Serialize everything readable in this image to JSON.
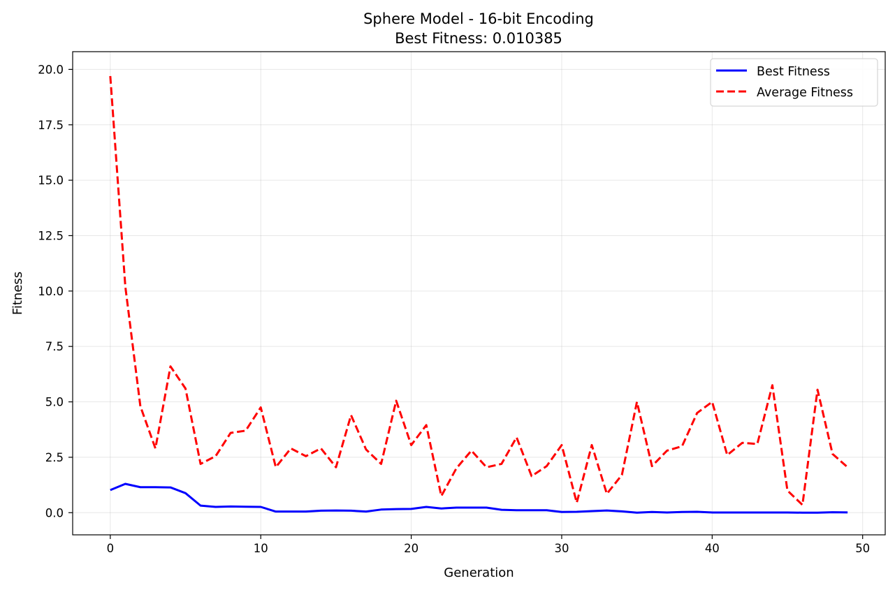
{
  "chart_data": {
    "type": "line",
    "title": "Sphere Model - 16-bit Encoding",
    "subtitle": "Best Fitness: 0.010385",
    "xlabel": "Generation",
    "ylabel": "Fitness",
    "xlim": [
      -2.5,
      51.5
    ],
    "ylim": [
      -1.0,
      20.8
    ],
    "xticks": [
      0,
      10,
      20,
      30,
      40,
      50
    ],
    "xtick_labels": [
      "0",
      "10",
      "20",
      "30",
      "40",
      "50"
    ],
    "yticks": [
      0,
      2.5,
      5,
      7.5,
      10,
      12.5,
      15,
      17.5,
      20
    ],
    "ytick_labels": [
      "0.0",
      "2.5",
      "5.0",
      "7.5",
      "10.0",
      "12.5",
      "15.0",
      "17.5",
      "20.0"
    ],
    "grid": true,
    "legend_position": "top-right",
    "x": [
      0,
      1,
      2,
      3,
      4,
      5,
      6,
      7,
      8,
      9,
      10,
      11,
      12,
      13,
      14,
      15,
      16,
      17,
      18,
      19,
      20,
      21,
      22,
      23,
      24,
      25,
      26,
      27,
      28,
      29,
      30,
      31,
      32,
      33,
      34,
      35,
      36,
      37,
      38,
      39,
      40,
      41,
      42,
      43,
      44,
      45,
      46,
      47,
      48,
      49
    ],
    "series": [
      {
        "name": "Best Fitness",
        "color": "#0000ff",
        "style": "solid",
        "values": [
          1.02,
          1.3,
          1.15,
          1.15,
          1.14,
          0.88,
          0.32,
          0.26,
          0.28,
          0.27,
          0.26,
          0.05,
          0.05,
          0.05,
          0.09,
          0.1,
          0.09,
          0.05,
          0.14,
          0.16,
          0.17,
          0.26,
          0.19,
          0.23,
          0.23,
          0.23,
          0.13,
          0.11,
          0.11,
          0.11,
          0.03,
          0.04,
          0.07,
          0.1,
          0.06,
          0.0,
          0.03,
          0.01,
          0.03,
          0.04,
          0.01,
          0.01,
          0.01,
          0.01,
          0.01,
          0.01,
          0.0,
          0.0,
          0.02,
          0.010385
        ]
      },
      {
        "name": "Average Fitness",
        "color": "#ff0000",
        "style": "dashed",
        "values": [
          19.7,
          10.2,
          4.8,
          2.9,
          6.6,
          5.6,
          2.2,
          2.55,
          3.6,
          3.7,
          4.75,
          2.05,
          2.9,
          2.55,
          2.9,
          2.05,
          4.4,
          2.85,
          2.2,
          5.05,
          3.05,
          3.95,
          0.75,
          2.0,
          2.8,
          2.05,
          2.2,
          3.4,
          1.65,
          2.1,
          3.05,
          0.45,
          3.05,
          0.85,
          1.7,
          5.0,
          2.1,
          2.8,
          3.0,
          4.5,
          5.0,
          2.6,
          3.15,
          3.1,
          5.75,
          1.0,
          0.35,
          5.55,
          2.65,
          2.05
        ]
      }
    ]
  }
}
